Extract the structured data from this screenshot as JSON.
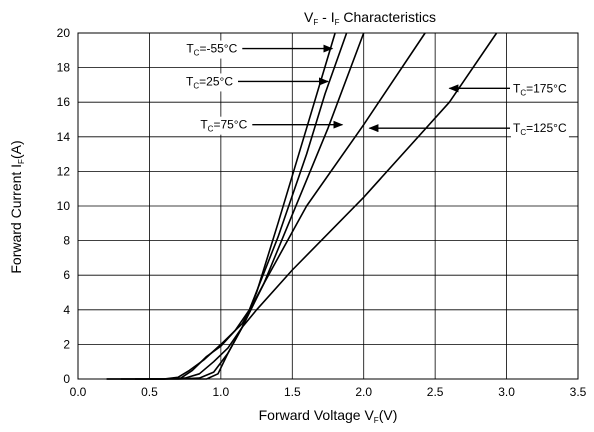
{
  "chart_data": {
    "type": "line",
    "title": {
      "main1": "V",
      "sub1": "F",
      "mid": " - I",
      "sub2": "F",
      "rest": " Characteristics"
    },
    "xlabel": {
      "main": "Forward Voltage V",
      "sub": "F",
      "rest": "(V)"
    },
    "ylabel": {
      "main": "Forward Current I",
      "sub": "F",
      "rest": "(A)"
    },
    "xlim": [
      0,
      3.5
    ],
    "ylim": [
      0,
      20
    ],
    "xticks": [
      "0.0",
      "0.5",
      "1.0",
      "1.5",
      "2.0",
      "2.5",
      "3.0",
      "3.5"
    ],
    "yticks": [
      "0",
      "2",
      "4",
      "6",
      "8",
      "10",
      "12",
      "14",
      "16",
      "18",
      "20"
    ],
    "grid": true,
    "series": [
      {
        "name": "T_C=-55°C",
        "points": [
          [
            0.2,
            0
          ],
          [
            0.6,
            0
          ],
          [
            0.75,
            0.05
          ],
          [
            0.85,
            0.3
          ],
          [
            0.95,
            1
          ],
          [
            1.05,
            1.8
          ],
          [
            1.15,
            3
          ],
          [
            1.25,
            5
          ],
          [
            1.4,
            9
          ],
          [
            1.6,
            14.5
          ],
          [
            1.8,
            20
          ]
        ]
      },
      {
        "name": "T_C=25°C",
        "points": [
          [
            0.2,
            0
          ],
          [
            0.6,
            0
          ],
          [
            0.72,
            0.05
          ],
          [
            0.8,
            0.5
          ],
          [
            0.9,
            1.3
          ],
          [
            1.0,
            1.9
          ],
          [
            1.1,
            2.8
          ],
          [
            1.2,
            4
          ],
          [
            1.4,
            8.2
          ],
          [
            1.6,
            13
          ],
          [
            1.73,
            16.5
          ],
          [
            1.88,
            20
          ]
        ]
      },
      {
        "name": "T_C=75°C",
        "points": [
          [
            0.3,
            0
          ],
          [
            0.6,
            0
          ],
          [
            0.7,
            0.1
          ],
          [
            0.78,
            0.5
          ],
          [
            0.88,
            1.1
          ],
          [
            1.0,
            2
          ],
          [
            1.15,
            3.2
          ],
          [
            1.3,
            5.5
          ],
          [
            1.5,
            9.5
          ],
          [
            1.75,
            14.5
          ],
          [
            2.0,
            20
          ]
        ]
      },
      {
        "name": "T_C=125°C",
        "points": [
          [
            0.4,
            0
          ],
          [
            0.7,
            0
          ],
          [
            0.85,
            0.05
          ],
          [
            0.95,
            0.4
          ],
          [
            1.05,
            1.5
          ],
          [
            1.15,
            3
          ],
          [
            1.3,
            5.5
          ],
          [
            1.6,
            10
          ],
          [
            2.0,
            14.7
          ],
          [
            2.43,
            20
          ]
        ]
      },
      {
        "name": "T_C=175°C",
        "points": [
          [
            0.5,
            0
          ],
          [
            0.9,
            0
          ],
          [
            0.98,
            0.3
          ],
          [
            1.05,
            1.5
          ],
          [
            1.15,
            3
          ],
          [
            1.25,
            4
          ],
          [
            1.5,
            6.3
          ],
          [
            2.0,
            10.5
          ],
          [
            2.6,
            16
          ],
          [
            2.93,
            20
          ]
        ]
      }
    ],
    "annotations": [
      {
        "label": "T",
        "sub": "C",
        "rest": "=-55°C",
        "tx": 1.78,
        "ty": 19.1,
        "side": "left"
      },
      {
        "label": "T",
        "sub": "C",
        "rest": "=25°C",
        "tx": 1.75,
        "ty": 17.2,
        "side": "left"
      },
      {
        "label": "T",
        "sub": "C",
        "rest": "=75°C",
        "tx": 1.85,
        "ty": 14.7,
        "side": "left"
      },
      {
        "label": "T",
        "sub": "C",
        "rest": "=125°C",
        "tx": 2.04,
        "ty": 14.5,
        "side": "right"
      },
      {
        "label": "T",
        "sub": "C",
        "rest": "=175°C",
        "tx": 2.6,
        "ty": 16.8,
        "side": "right"
      }
    ]
  }
}
